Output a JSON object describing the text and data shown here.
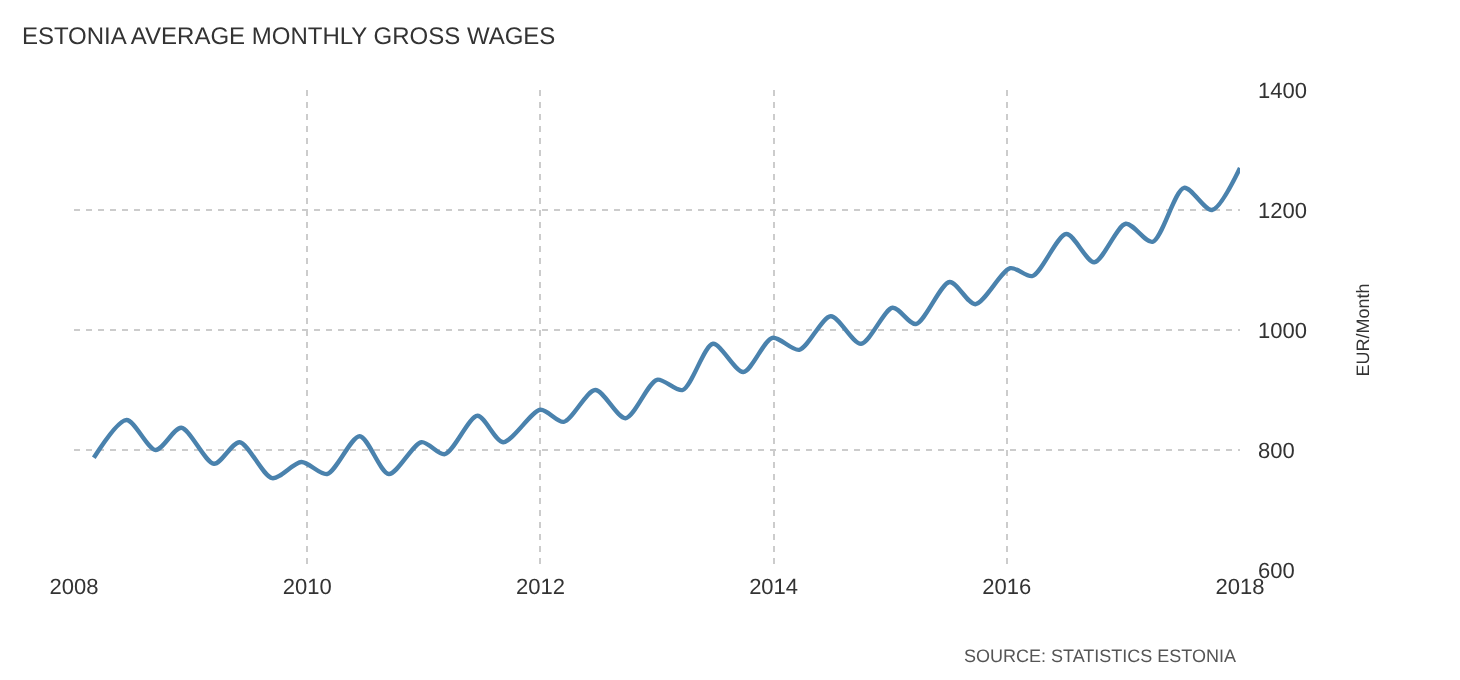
{
  "chart_data": {
    "type": "line",
    "title": "ESTONIA AVERAGE MONTHLY GROSS WAGES",
    "ylabel": "EUR/Month",
    "annotations": [
      "SOURCE: STATISTICS ESTONIA"
    ],
    "x": [
      2008.17,
      2008.45,
      2008.7,
      2008.92,
      2009.2,
      2009.42,
      2009.7,
      2009.95,
      2010.17,
      2010.45,
      2010.7,
      2010.98,
      2011.18,
      2011.46,
      2011.68,
      2012.0,
      2012.2,
      2012.47,
      2012.73,
      2013.0,
      2013.22,
      2013.48,
      2013.74,
      2013.99,
      2014.22,
      2014.49,
      2014.75,
      2015.02,
      2015.22,
      2015.51,
      2015.73,
      2016.03,
      2016.22,
      2016.51,
      2016.75,
      2017.02,
      2017.25,
      2017.52,
      2017.76,
      2018.0
    ],
    "series": [
      {
        "color": "#4a82ad",
        "values": [
          787,
          850,
          800,
          837,
          777,
          813,
          753,
          780,
          760,
          823,
          760,
          813,
          793,
          857,
          813,
          867,
          847,
          900,
          853,
          917,
          900,
          977,
          930,
          987,
          967,
          1023,
          977,
          1037,
          1010,
          1080,
          1043,
          1103,
          1090,
          1160,
          1113,
          1177,
          1147,
          1237,
          1200,
          1270
        ]
      }
    ],
    "xlim": [
      2008,
      2018
    ],
    "xticks": [
      2008,
      2010,
      2012,
      2014,
      2016,
      2018
    ],
    "ylim": [
      600,
      1400
    ],
    "yticks": [
      600,
      800,
      1000,
      1200,
      1400
    ],
    "grid": true,
    "marker": "none",
    "line_style": "solid"
  }
}
